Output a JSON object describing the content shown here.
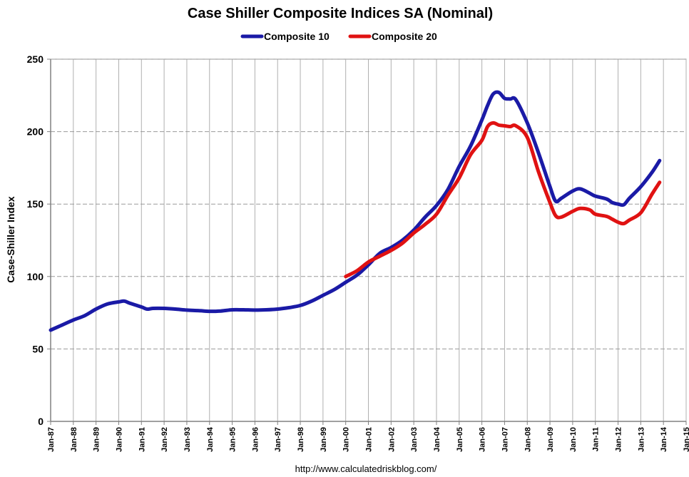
{
  "chart_data": {
    "type": "line",
    "title": "Case Shiller Composite Indices SA (Nominal)",
    "ylabel": "Case-Shiller Index",
    "xlabel": "",
    "ylim": [
      0,
      250
    ],
    "yticks": [
      0,
      50,
      100,
      150,
      200,
      250
    ],
    "xlim": [
      1987,
      2015
    ],
    "xtick_labels": [
      "Jan-87",
      "Jan-88",
      "Jan-89",
      "Jan-90",
      "Jan-91",
      "Jan-92",
      "Jan-93",
      "Jan-94",
      "Jan-95",
      "Jan-96",
      "Jan-97",
      "Jan-98",
      "Jan-99",
      "Jan-00",
      "Jan-01",
      "Jan-02",
      "Jan-03",
      "Jan-04",
      "Jan-05",
      "Jan-06",
      "Jan-07",
      "Jan-08",
      "Jan-09",
      "Jan-10",
      "Jan-11",
      "Jan-12",
      "Jan-13",
      "Jan-14",
      "Jan-15"
    ],
    "grid": true,
    "legend_position": "top",
    "source": "http://www.calculatedriskblog.com/",
    "series": [
      {
        "name": "Composite 10",
        "color": "#1a1aa6",
        "x": [
          1987.0,
          1987.5,
          1988.0,
          1988.5,
          1989.0,
          1989.5,
          1990.0,
          1990.25,
          1990.5,
          1991.0,
          1991.25,
          1991.5,
          1992.0,
          1992.5,
          1993.0,
          1993.5,
          1994.0,
          1994.5,
          1995.0,
          1995.5,
          1996.0,
          1996.5,
          1997.0,
          1997.5,
          1998.0,
          1998.5,
          1999.0,
          1999.5,
          2000.0,
          2000.5,
          2001.0,
          2001.5,
          2002.0,
          2002.5,
          2003.0,
          2003.5,
          2004.0,
          2004.5,
          2005.0,
          2005.5,
          2006.0,
          2006.25,
          2006.5,
          2006.75,
          2007.0,
          2007.25,
          2007.5,
          2008.0,
          2008.5,
          2009.0,
          2009.25,
          2009.5,
          2010.0,
          2010.33,
          2010.75,
          2011.0,
          2011.5,
          2011.75,
          2012.0,
          2012.25,
          2012.5,
          2013.0,
          2013.5,
          2013.83
        ],
        "values": [
          63,
          66.5,
          70,
          73,
          77.5,
          81,
          82.5,
          83,
          81.5,
          79,
          77.5,
          78,
          78,
          77.5,
          76.8,
          76.5,
          76,
          76.2,
          77,
          77,
          76.8,
          77,
          77.5,
          78.5,
          80,
          83,
          87,
          91,
          96,
          101,
          108,
          116,
          120,
          125,
          132,
          141,
          149,
          160,
          176,
          190,
          208,
          218,
          226,
          227,
          223,
          222.5,
          222,
          206,
          185,
          162,
          152,
          154,
          159,
          160.5,
          157.5,
          155.5,
          153.5,
          151,
          150,
          149.5,
          154,
          162,
          172,
          180
        ]
      },
      {
        "name": "Composite 20",
        "color": "#e01212",
        "x": [
          2000.0,
          2000.5,
          2001.0,
          2001.5,
          2002.0,
          2002.5,
          2003.0,
          2003.5,
          2004.0,
          2004.5,
          2005.0,
          2005.5,
          2006.0,
          2006.25,
          2006.5,
          2006.75,
          2007.0,
          2007.25,
          2007.5,
          2008.0,
          2008.5,
          2009.0,
          2009.25,
          2009.5,
          2010.0,
          2010.33,
          2010.75,
          2011.0,
          2011.5,
          2011.75,
          2012.0,
          2012.25,
          2012.5,
          2013.0,
          2013.5,
          2013.83
        ],
        "values": [
          100,
          104,
          110,
          114,
          118,
          123,
          130,
          136,
          143,
          156,
          168,
          184,
          194,
          203.5,
          206,
          204.5,
          204,
          203.5,
          204,
          196,
          172,
          151,
          142,
          141,
          145,
          147,
          146,
          143,
          141.5,
          139.5,
          137.5,
          136.5,
          139,
          144,
          157,
          165
        ]
      }
    ]
  }
}
